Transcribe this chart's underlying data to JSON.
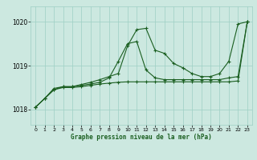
{
  "title": "Graphe pression niveau de la mer (hPa)",
  "bg_color": "#cce8e0",
  "grid_color": "#9ecfc4",
  "line_color": "#1a5e20",
  "ylim": [
    1017.65,
    1020.35
  ],
  "xlim": [
    -0.5,
    23.5
  ],
  "yticks": [
    1018,
    1019,
    1020
  ],
  "xticks": [
    0,
    1,
    2,
    3,
    4,
    5,
    6,
    7,
    8,
    9,
    10,
    11,
    12,
    13,
    14,
    15,
    16,
    17,
    18,
    19,
    20,
    21,
    22,
    23
  ],
  "curves": [
    [
      1018.05,
      1018.25,
      1018.48,
      1018.52,
      1018.52,
      1018.57,
      1018.62,
      1018.68,
      1018.75,
      1018.82,
      1019.45,
      1019.82,
      1019.85,
      1019.35,
      1019.28,
      1019.05,
      1018.95,
      1018.82,
      1018.75,
      1018.75,
      1018.82,
      1019.1,
      1019.95,
      1020.0
    ],
    [
      1018.05,
      1018.25,
      1018.45,
      1018.52,
      1018.52,
      1018.55,
      1018.58,
      1018.62,
      1018.72,
      1019.1,
      1019.5,
      1019.55,
      1018.9,
      1018.72,
      1018.68,
      1018.68,
      1018.68,
      1018.68,
      1018.68,
      1018.68,
      1018.68,
      1018.72,
      1018.75,
      1020.0
    ],
    [
      1018.05,
      1018.25,
      1018.45,
      1018.5,
      1018.5,
      1018.52,
      1018.55,
      1018.58,
      1018.6,
      1018.62,
      1018.63,
      1018.63,
      1018.63,
      1018.63,
      1018.63,
      1018.63,
      1018.63,
      1018.63,
      1018.63,
      1018.63,
      1018.63,
      1018.63,
      1018.65,
      1020.0
    ]
  ]
}
